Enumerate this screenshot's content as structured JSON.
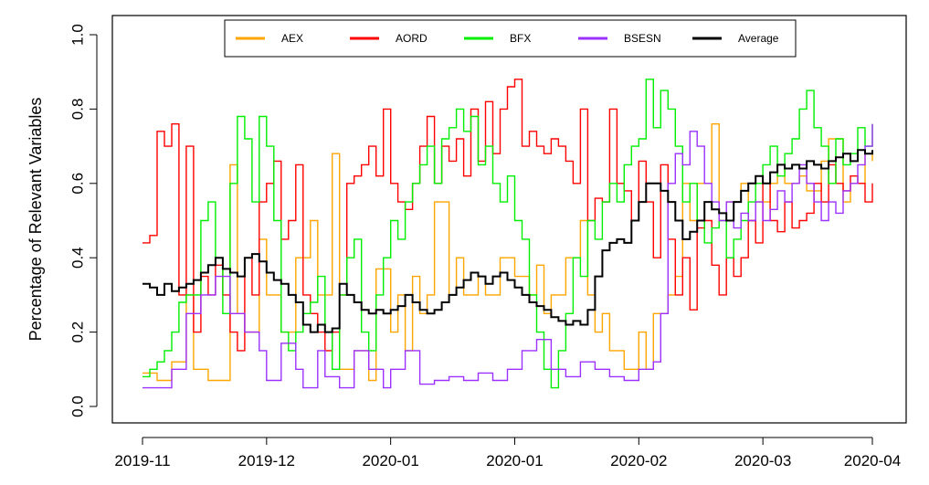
{
  "chart_data": {
    "type": "line",
    "title": "",
    "xlabel": "",
    "ylabel": "Percentage of Relevant Variables",
    "xlim": [
      0,
      100
    ],
    "ylim": [
      0.0,
      1.0
    ],
    "x_ticks": [
      {
        "x": 0,
        "label": "2019-11"
      },
      {
        "x": 17,
        "label": "2019-12"
      },
      {
        "x": 34,
        "label": "2020-01"
      },
      {
        "x": 51,
        "label": "2020-01"
      },
      {
        "x": 68,
        "label": "2020-02"
      },
      {
        "x": 85,
        "label": "2020-03"
      },
      {
        "x": 100,
        "label": "2020-04"
      }
    ],
    "y_ticks": [
      "0.0",
      "0.2",
      "0.4",
      "0.6",
      "0.8",
      "1.0"
    ],
    "y_tick_values": [
      0.0,
      0.2,
      0.4,
      0.6,
      0.8,
      1.0
    ],
    "grid": false,
    "legend_position": "top",
    "step": true,
    "series": [
      {
        "name": "AEX",
        "color": "#FFA500",
        "x": [
          0,
          2,
          4,
          6,
          7,
          9,
          12,
          13,
          14,
          16,
          17,
          19,
          21,
          23,
          24,
          26,
          27,
          29,
          31,
          32,
          34,
          35,
          36,
          37,
          38,
          39,
          40,
          42,
          43,
          44,
          46,
          47,
          49,
          51,
          53,
          54,
          55,
          56,
          58,
          60,
          61,
          62,
          63,
          64,
          66,
          67,
          68,
          69,
          70,
          72,
          73,
          74,
          75,
          76,
          78,
          79,
          80,
          82,
          83,
          84,
          86,
          87,
          88,
          90,
          91,
          93,
          94,
          96,
          97,
          99,
          100
        ],
        "values": [
          0.09,
          0.07,
          0.12,
          0.3,
          0.1,
          0.07,
          0.65,
          0.25,
          0.2,
          0.45,
          0.3,
          0.2,
          0.4,
          0.5,
          0.3,
          0.68,
          0.1,
          0.15,
          0.07,
          0.37,
          0.2,
          0.3,
          0.15,
          0.35,
          0.25,
          0.3,
          0.55,
          0.3,
          0.4,
          0.3,
          0.35,
          0.3,
          0.4,
          0.35,
          0.3,
          0.38,
          0.25,
          0.3,
          0.4,
          0.5,
          0.3,
          0.2,
          0.25,
          0.15,
          0.1,
          0.1,
          0.2,
          0.1,
          0.25,
          0.3,
          0.35,
          0.6,
          0.5,
          0.6,
          0.76,
          0.5,
          0.55,
          0.6,
          0.5,
          0.55,
          0.6,
          0.65,
          0.6,
          0.62,
          0.58,
          0.66,
          0.72,
          0.55,
          0.6,
          0.68,
          0.66
        ]
      },
      {
        "name": "AORD",
        "color": "#FF0000",
        "x": [
          0,
          1,
          2,
          3,
          4,
          5,
          6,
          7,
          8,
          9,
          10,
          11,
          12,
          13,
          14,
          15,
          16,
          17,
          18,
          19,
          20,
          21,
          22,
          23,
          24,
          25,
          26,
          27,
          28,
          29,
          30,
          31,
          32,
          33,
          34,
          35,
          36,
          37,
          38,
          39,
          40,
          41,
          42,
          43,
          44,
          45,
          46,
          47,
          48,
          49,
          50,
          51,
          52,
          53,
          54,
          55,
          56,
          57,
          58,
          59,
          60,
          61,
          62,
          63,
          64,
          65,
          66,
          67,
          68,
          69,
          70,
          71,
          72,
          73,
          74,
          75,
          76,
          77,
          78,
          79,
          80,
          81,
          82,
          83,
          84,
          85,
          86,
          87,
          88,
          89,
          90,
          91,
          92,
          93,
          94,
          95,
          96,
          97,
          98,
          99,
          100
        ],
        "values": [
          0.44,
          0.46,
          0.74,
          0.7,
          0.76,
          0.3,
          0.7,
          0.2,
          0.35,
          0.3,
          0.38,
          0.3,
          0.2,
          0.15,
          0.4,
          0.3,
          0.55,
          0.6,
          0.66,
          0.45,
          0.5,
          0.65,
          0.3,
          0.25,
          0.2,
          0.15,
          0.2,
          0.3,
          0.6,
          0.62,
          0.65,
          0.7,
          0.62,
          0.8,
          0.6,
          0.55,
          0.53,
          0.6,
          0.7,
          0.78,
          0.6,
          0.7,
          0.66,
          0.72,
          0.62,
          0.8,
          0.66,
          0.82,
          0.68,
          0.8,
          0.86,
          0.88,
          0.7,
          0.74,
          0.7,
          0.68,
          0.72,
          0.7,
          0.66,
          0.6,
          0.8,
          0.5,
          0.56,
          0.55,
          0.8,
          0.6,
          0.58,
          0.5,
          0.66,
          0.55,
          0.4,
          0.65,
          0.45,
          0.3,
          0.4,
          0.26,
          0.48,
          0.5,
          0.38,
          0.3,
          0.4,
          0.35,
          0.4,
          0.5,
          0.44,
          0.6,
          0.5,
          0.47,
          0.55,
          0.48,
          0.5,
          0.52,
          0.6,
          0.55,
          0.65,
          0.6,
          0.58,
          0.62,
          0.6,
          0.55,
          0.6
        ]
      },
      {
        "name": "BFX",
        "color": "#00EE00",
        "x": [
          0,
          1,
          2,
          3,
          4,
          5,
          6,
          7,
          8,
          9,
          10,
          11,
          12,
          13,
          14,
          15,
          16,
          17,
          18,
          19,
          20,
          21,
          22,
          23,
          24,
          25,
          26,
          27,
          28,
          29,
          30,
          31,
          32,
          33,
          34,
          35,
          36,
          37,
          38,
          39,
          40,
          41,
          42,
          43,
          44,
          45,
          46,
          47,
          48,
          49,
          50,
          51,
          52,
          53,
          54,
          55,
          56,
          57,
          58,
          59,
          60,
          61,
          62,
          63,
          64,
          65,
          66,
          67,
          68,
          69,
          70,
          71,
          72,
          73,
          74,
          75,
          76,
          77,
          78,
          79,
          80,
          81,
          82,
          83,
          84,
          85,
          86,
          87,
          88,
          89,
          90,
          91,
          92,
          93,
          94,
          95,
          96,
          97,
          98,
          99,
          100
        ],
        "values": [
          0.08,
          0.1,
          0.12,
          0.15,
          0.2,
          0.28,
          0.3,
          0.3,
          0.5,
          0.55,
          0.4,
          0.25,
          0.6,
          0.78,
          0.72,
          0.55,
          0.78,
          0.7,
          0.5,
          0.2,
          0.15,
          0.2,
          0.25,
          0.28,
          0.35,
          0.2,
          0.1,
          0.3,
          0.4,
          0.45,
          0.2,
          0.15,
          0.3,
          0.4,
          0.5,
          0.45,
          0.55,
          0.6,
          0.65,
          0.7,
          0.6,
          0.72,
          0.75,
          0.8,
          0.74,
          0.78,
          0.65,
          0.7,
          0.6,
          0.55,
          0.62,
          0.5,
          0.45,
          0.3,
          0.2,
          0.1,
          0.05,
          0.15,
          0.25,
          0.4,
          0.35,
          0.5,
          0.45,
          0.55,
          0.6,
          0.55,
          0.65,
          0.7,
          0.72,
          0.88,
          0.75,
          0.85,
          0.8,
          0.7,
          0.55,
          0.6,
          0.5,
          0.44,
          0.48,
          0.5,
          0.4,
          0.45,
          0.5,
          0.55,
          0.6,
          0.65,
          0.7,
          0.62,
          0.68,
          0.72,
          0.8,
          0.85,
          0.75,
          0.7,
          0.6,
          0.72,
          0.65,
          0.68,
          0.75,
          0.7,
          0.76
        ]
      },
      {
        "name": "BSESN",
        "color": "#9B30FF",
        "x": [
          0,
          4,
          6,
          8,
          10,
          12,
          14,
          16,
          17,
          19,
          21,
          22,
          24,
          25,
          27,
          29,
          31,
          33,
          34,
          36,
          38,
          40,
          42,
          44,
          46,
          48,
          50,
          52,
          54,
          56,
          58,
          60,
          62,
          64,
          66,
          68,
          70,
          71,
          72,
          73,
          74,
          75,
          76,
          77,
          78,
          79,
          80,
          81,
          82,
          83,
          84,
          85,
          86,
          87,
          88,
          89,
          90,
          91,
          92,
          93,
          94,
          95,
          96,
          97,
          98,
          99,
          100
        ],
        "values": [
          0.05,
          0.1,
          0.25,
          0.3,
          0.35,
          0.25,
          0.2,
          0.15,
          0.07,
          0.17,
          0.1,
          0.05,
          0.15,
          0.08,
          0.05,
          0.15,
          0.1,
          0.05,
          0.1,
          0.15,
          0.06,
          0.07,
          0.08,
          0.07,
          0.09,
          0.07,
          0.1,
          0.15,
          0.18,
          0.1,
          0.08,
          0.12,
          0.1,
          0.08,
          0.07,
          0.1,
          0.12,
          0.25,
          0.6,
          0.68,
          0.65,
          0.74,
          0.7,
          0.6,
          0.55,
          0.5,
          0.55,
          0.48,
          0.52,
          0.5,
          0.55,
          0.5,
          0.53,
          0.58,
          0.55,
          0.6,
          0.65,
          0.6,
          0.55,
          0.5,
          0.55,
          0.52,
          0.58,
          0.6,
          0.65,
          0.7,
          0.76
        ]
      },
      {
        "name": "Average",
        "color": "#000000",
        "x": [
          0,
          1,
          2,
          3,
          4,
          5,
          6,
          7,
          8,
          9,
          10,
          11,
          12,
          13,
          14,
          15,
          16,
          17,
          18,
          19,
          20,
          21,
          22,
          23,
          24,
          25,
          26,
          27,
          28,
          29,
          30,
          31,
          32,
          33,
          34,
          35,
          36,
          37,
          38,
          39,
          40,
          41,
          42,
          43,
          44,
          45,
          46,
          47,
          48,
          49,
          50,
          51,
          52,
          53,
          54,
          55,
          56,
          57,
          58,
          59,
          60,
          61,
          62,
          63,
          64,
          65,
          66,
          67,
          68,
          69,
          70,
          71,
          72,
          73,
          74,
          75,
          76,
          77,
          78,
          79,
          80,
          81,
          82,
          83,
          84,
          85,
          86,
          87,
          88,
          89,
          90,
          91,
          92,
          93,
          94,
          95,
          96,
          97,
          98,
          99,
          100
        ],
        "values": [
          0.33,
          0.32,
          0.3,
          0.33,
          0.31,
          0.32,
          0.33,
          0.34,
          0.36,
          0.38,
          0.4,
          0.37,
          0.36,
          0.35,
          0.4,
          0.41,
          0.39,
          0.36,
          0.34,
          0.33,
          0.3,
          0.28,
          0.22,
          0.2,
          0.22,
          0.2,
          0.21,
          0.33,
          0.3,
          0.28,
          0.26,
          0.25,
          0.26,
          0.25,
          0.26,
          0.27,
          0.3,
          0.28,
          0.26,
          0.25,
          0.26,
          0.28,
          0.3,
          0.32,
          0.34,
          0.36,
          0.35,
          0.33,
          0.35,
          0.36,
          0.34,
          0.32,
          0.3,
          0.28,
          0.27,
          0.26,
          0.24,
          0.23,
          0.22,
          0.23,
          0.22,
          0.26,
          0.35,
          0.42,
          0.44,
          0.45,
          0.44,
          0.5,
          0.55,
          0.6,
          0.6,
          0.58,
          0.55,
          0.5,
          0.45,
          0.47,
          0.5,
          0.55,
          0.53,
          0.52,
          0.5,
          0.55,
          0.58,
          0.6,
          0.62,
          0.6,
          0.63,
          0.65,
          0.64,
          0.65,
          0.64,
          0.66,
          0.65,
          0.64,
          0.66,
          0.67,
          0.68,
          0.66,
          0.69,
          0.68,
          0.69
        ]
      }
    ]
  }
}
